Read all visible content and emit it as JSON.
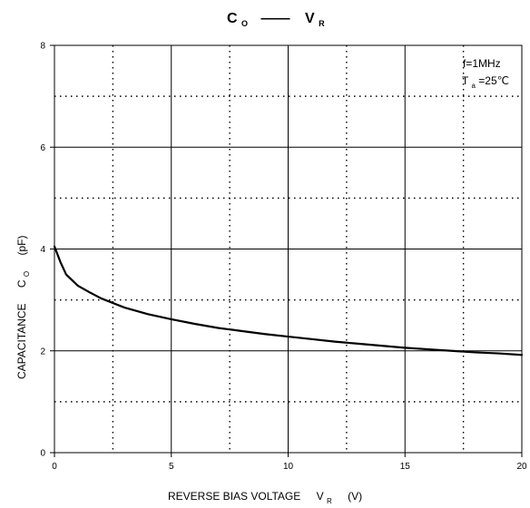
{
  "chart_data": {
    "type": "line",
    "title": {
      "left_main": "C",
      "left_sub": "O",
      "dash": "——",
      "right_main": "V",
      "right_sub": "R"
    },
    "xlabel": {
      "main": "REVERSE BIAS VOLTAGE",
      "symbol": "V",
      "sub": "R",
      "unit": "(V)"
    },
    "ylabel": {
      "main": "CAPACITANCE",
      "symbol": "C",
      "sub": "O",
      "unit": "(pF)"
    },
    "xlim": [
      0,
      20
    ],
    "ylim": [
      0,
      8
    ],
    "xticks": [
      0,
      5,
      10,
      15,
      20
    ],
    "yticks": [
      0,
      2,
      4,
      6,
      8
    ],
    "grid": {
      "major": true,
      "minor_dotted": true
    },
    "annotations": {
      "freq": "f=1MHz",
      "temp_main": "T",
      "temp_sub": "a",
      "temp_value": "=25℃"
    },
    "series": [
      {
        "values": [
          [
            0,
            4.05
          ],
          [
            0.25,
            3.75
          ],
          [
            0.5,
            3.5
          ],
          [
            1,
            3.28
          ],
          [
            1.5,
            3.15
          ],
          [
            2,
            3.03
          ],
          [
            3,
            2.85
          ],
          [
            4,
            2.72
          ],
          [
            5,
            2.62
          ],
          [
            6,
            2.53
          ],
          [
            7,
            2.45
          ],
          [
            8,
            2.39
          ],
          [
            9,
            2.33
          ],
          [
            10,
            2.28
          ],
          [
            11,
            2.23
          ],
          [
            12,
            2.18
          ],
          [
            13,
            2.14
          ],
          [
            14,
            2.1
          ],
          [
            15,
            2.06
          ],
          [
            16,
            2.03
          ],
          [
            17,
            2.0
          ],
          [
            18,
            1.97
          ],
          [
            19,
            1.95
          ],
          [
            20,
            1.92
          ]
        ]
      }
    ]
  }
}
